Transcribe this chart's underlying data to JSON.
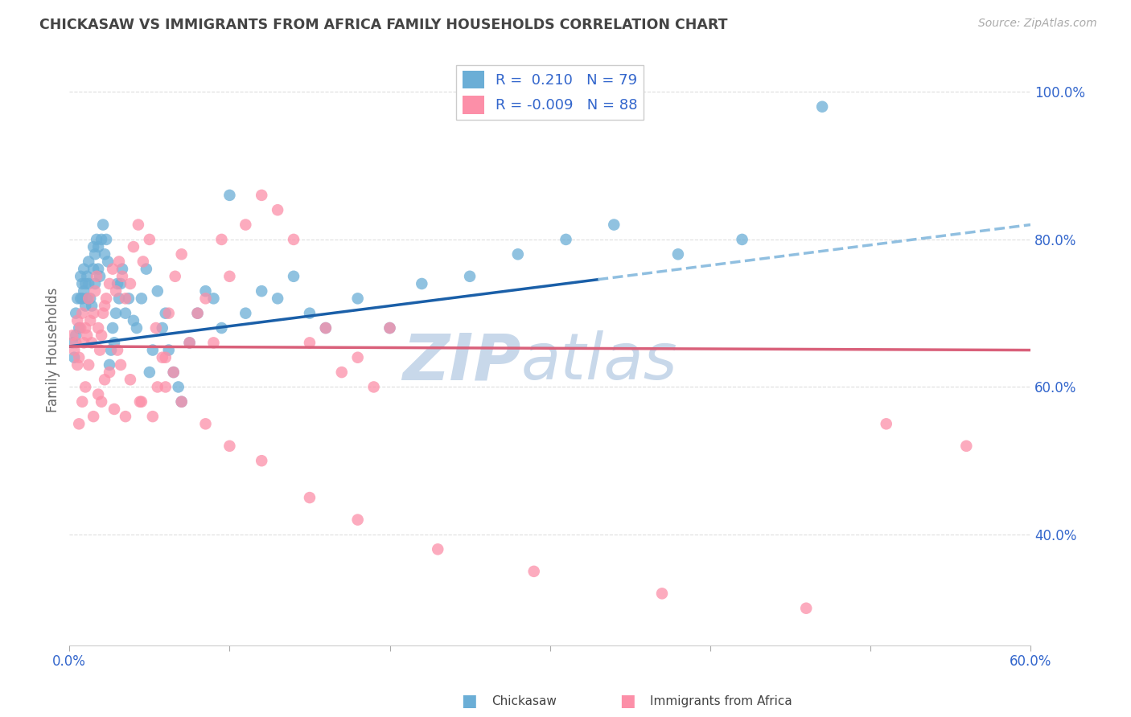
{
  "title": "CHICKASAW VS IMMIGRANTS FROM AFRICA FAMILY HOUSEHOLDS CORRELATION CHART",
  "source": "Source: ZipAtlas.com",
  "ylabel": "Family Households",
  "x_min": 0.0,
  "x_max": 0.6,
  "y_min": 0.25,
  "y_max": 1.05,
  "chickasaw_R": 0.21,
  "chickasaw_N": 79,
  "africa_R": -0.009,
  "africa_N": 88,
  "chickasaw_color": "#6baed6",
  "africa_color": "#fc8fa8",
  "trendline_chickasaw_solid_color": "#1a5fa8",
  "trendline_chickasaw_dashed_color": "#90bfe0",
  "trendline_africa_color": "#d9607a",
  "background_color": "#ffffff",
  "grid_color": "#dddddd",
  "legend_text_color": "#3366CC",
  "title_color": "#444444",
  "watermark_color": "#c8d8ea",
  "ytick_values": [
    0.4,
    0.6,
    0.8,
    1.0
  ],
  "ytick_labels": [
    "40.0%",
    "60.0%",
    "80.0%",
    "100.0%"
  ],
  "trendline_split_x": 0.33,
  "chickasaw_trend_x0": 0.0,
  "chickasaw_trend_y0": 0.655,
  "chickasaw_trend_x1": 0.6,
  "chickasaw_trend_y1": 0.82,
  "africa_trend_x0": 0.0,
  "africa_trend_y0": 0.655,
  "africa_trend_x1": 0.6,
  "africa_trend_y1": 0.65,
  "chickasaw_x": [
    0.002,
    0.003,
    0.004,
    0.004,
    0.005,
    0.006,
    0.007,
    0.007,
    0.008,
    0.008,
    0.009,
    0.009,
    0.01,
    0.01,
    0.011,
    0.011,
    0.012,
    0.012,
    0.013,
    0.014,
    0.015,
    0.015,
    0.016,
    0.016,
    0.017,
    0.018,
    0.018,
    0.019,
    0.02,
    0.021,
    0.022,
    0.023,
    0.024,
    0.025,
    0.026,
    0.027,
    0.028,
    0.029,
    0.03,
    0.031,
    0.032,
    0.033,
    0.035,
    0.037,
    0.04,
    0.042,
    0.045,
    0.048,
    0.05,
    0.052,
    0.055,
    0.058,
    0.06,
    0.062,
    0.065,
    0.068,
    0.07,
    0.075,
    0.08,
    0.085,
    0.09,
    0.095,
    0.1,
    0.11,
    0.12,
    0.13,
    0.14,
    0.15,
    0.16,
    0.18,
    0.2,
    0.22,
    0.25,
    0.28,
    0.31,
    0.34,
    0.38,
    0.42,
    0.47
  ],
  "chickasaw_y": [
    0.66,
    0.64,
    0.67,
    0.7,
    0.72,
    0.68,
    0.72,
    0.75,
    0.72,
    0.74,
    0.73,
    0.76,
    0.71,
    0.74,
    0.72,
    0.75,
    0.74,
    0.77,
    0.72,
    0.71,
    0.76,
    0.79,
    0.74,
    0.78,
    0.8,
    0.76,
    0.79,
    0.75,
    0.8,
    0.82,
    0.78,
    0.8,
    0.77,
    0.63,
    0.65,
    0.68,
    0.66,
    0.7,
    0.74,
    0.72,
    0.74,
    0.76,
    0.7,
    0.72,
    0.69,
    0.68,
    0.72,
    0.76,
    0.62,
    0.65,
    0.73,
    0.68,
    0.7,
    0.65,
    0.62,
    0.6,
    0.58,
    0.66,
    0.7,
    0.73,
    0.72,
    0.68,
    0.86,
    0.7,
    0.73,
    0.72,
    0.75,
    0.7,
    0.68,
    0.72,
    0.68,
    0.74,
    0.75,
    0.78,
    0.8,
    0.82,
    0.78,
    0.8,
    0.98
  ],
  "africa_x": [
    0.002,
    0.003,
    0.004,
    0.005,
    0.006,
    0.007,
    0.008,
    0.009,
    0.01,
    0.011,
    0.012,
    0.013,
    0.014,
    0.015,
    0.016,
    0.017,
    0.018,
    0.019,
    0.02,
    0.021,
    0.022,
    0.023,
    0.025,
    0.027,
    0.029,
    0.031,
    0.033,
    0.035,
    0.038,
    0.04,
    0.043,
    0.046,
    0.05,
    0.054,
    0.058,
    0.062,
    0.066,
    0.07,
    0.075,
    0.08,
    0.085,
    0.09,
    0.095,
    0.1,
    0.11,
    0.12,
    0.13,
    0.14,
    0.15,
    0.16,
    0.17,
    0.18,
    0.19,
    0.2,
    0.06,
    0.065,
    0.055,
    0.045,
    0.035,
    0.03,
    0.025,
    0.02,
    0.015,
    0.012,
    0.01,
    0.008,
    0.006,
    0.005,
    0.018,
    0.022,
    0.028,
    0.032,
    0.038,
    0.044,
    0.052,
    0.06,
    0.07,
    0.085,
    0.1,
    0.12,
    0.15,
    0.18,
    0.23,
    0.29,
    0.37,
    0.46,
    0.51,
    0.56
  ],
  "africa_y": [
    0.67,
    0.65,
    0.66,
    0.69,
    0.64,
    0.68,
    0.7,
    0.66,
    0.68,
    0.67,
    0.72,
    0.69,
    0.66,
    0.7,
    0.73,
    0.75,
    0.68,
    0.65,
    0.67,
    0.7,
    0.71,
    0.72,
    0.74,
    0.76,
    0.73,
    0.77,
    0.75,
    0.72,
    0.74,
    0.79,
    0.82,
    0.77,
    0.8,
    0.68,
    0.64,
    0.7,
    0.75,
    0.78,
    0.66,
    0.7,
    0.72,
    0.66,
    0.8,
    0.75,
    0.82,
    0.86,
    0.84,
    0.8,
    0.66,
    0.68,
    0.62,
    0.64,
    0.6,
    0.68,
    0.64,
    0.62,
    0.6,
    0.58,
    0.56,
    0.65,
    0.62,
    0.58,
    0.56,
    0.63,
    0.6,
    0.58,
    0.55,
    0.63,
    0.59,
    0.61,
    0.57,
    0.63,
    0.61,
    0.58,
    0.56,
    0.6,
    0.58,
    0.55,
    0.52,
    0.5,
    0.45,
    0.42,
    0.38,
    0.35,
    0.32,
    0.3,
    0.55,
    0.52
  ]
}
